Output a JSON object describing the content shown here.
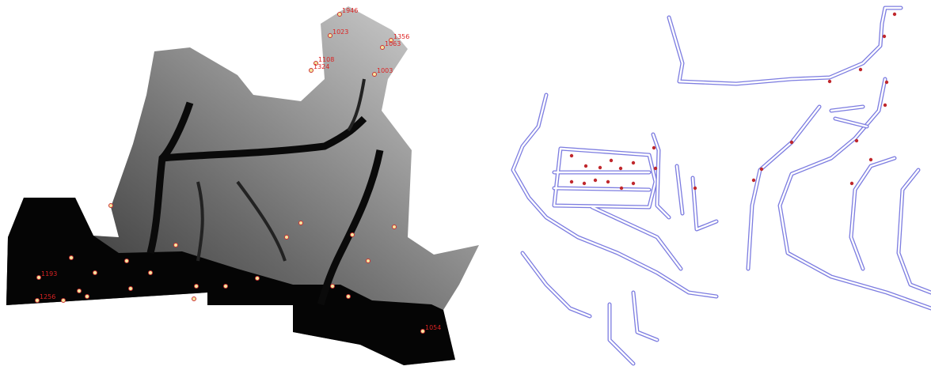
{
  "dem_map": {
    "labels": [
      "1946",
      "1023",
      "1356",
      "1063",
      "1108",
      "1324",
      "1003",
      "1054",
      "1256",
      "1193"
    ]
  }
}
